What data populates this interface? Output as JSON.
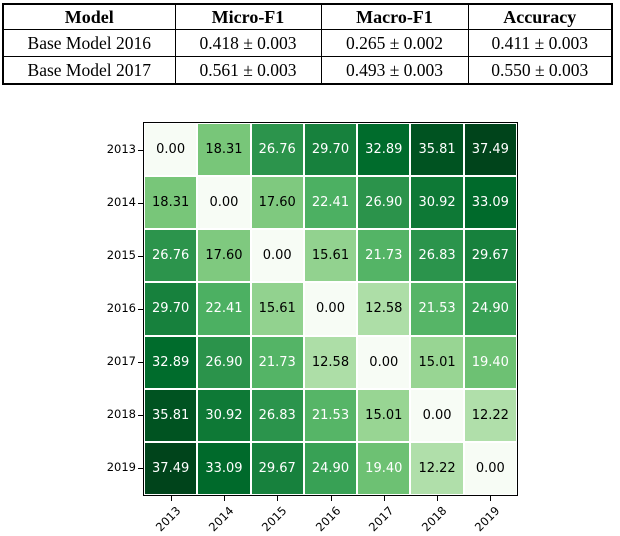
{
  "page": {
    "background": "#ffffff"
  },
  "results_table": {
    "columns": [
      "Model",
      "Micro-F1",
      "Macro-F1",
      "Accuracy"
    ],
    "rows": [
      [
        "Base Model 2016",
        "0.418 ± 0.003",
        "0.265 ± 0.002",
        "0.411 ± 0.003"
      ],
      [
        "Base Model 2017",
        "0.561 ± 0.003",
        "0.493 ± 0.003",
        "0.550 ± 0.003"
      ]
    ]
  },
  "chart_data": {
    "type": "heatmap",
    "title": "",
    "x_labels": [
      "2013",
      "2014",
      "2015",
      "2016",
      "2017",
      "2018",
      "2019"
    ],
    "y_labels": [
      "2013",
      "2014",
      "2015",
      "2016",
      "2017",
      "2018",
      "2019"
    ],
    "values": [
      [
        0.0,
        18.31,
        26.76,
        29.7,
        32.89,
        35.81,
        37.49
      ],
      [
        18.31,
        0.0,
        17.6,
        22.41,
        26.9,
        30.92,
        33.09
      ],
      [
        26.76,
        17.6,
        0.0,
        15.61,
        21.73,
        26.83,
        29.67
      ],
      [
        29.7,
        22.41,
        15.61,
        0.0,
        12.58,
        21.53,
        24.9
      ],
      [
        32.89,
        26.9,
        21.73,
        12.58,
        0.0,
        15.01,
        19.4
      ],
      [
        35.81,
        30.92,
        26.83,
        21.53,
        15.01,
        0.0,
        12.22
      ],
      [
        37.49,
        33.09,
        29.67,
        24.9,
        19.4,
        12.22,
        0.0
      ]
    ],
    "value_decimals": 2,
    "vmin": 0,
    "vmax": 37.49,
    "colormap": "Greens",
    "colormap_stops": [
      "#f7fcf5",
      "#e5f5e0",
      "#c7e9c0",
      "#a1d99b",
      "#74c476",
      "#41ab5d",
      "#238b45",
      "#006d2c",
      "#00441b"
    ],
    "annotation_color_low": "#000000",
    "annotation_color_high": "#ffffff",
    "cell_gap_color": "#ffffff",
    "frame_color": "#000000",
    "legend": "none",
    "grid": false
  }
}
